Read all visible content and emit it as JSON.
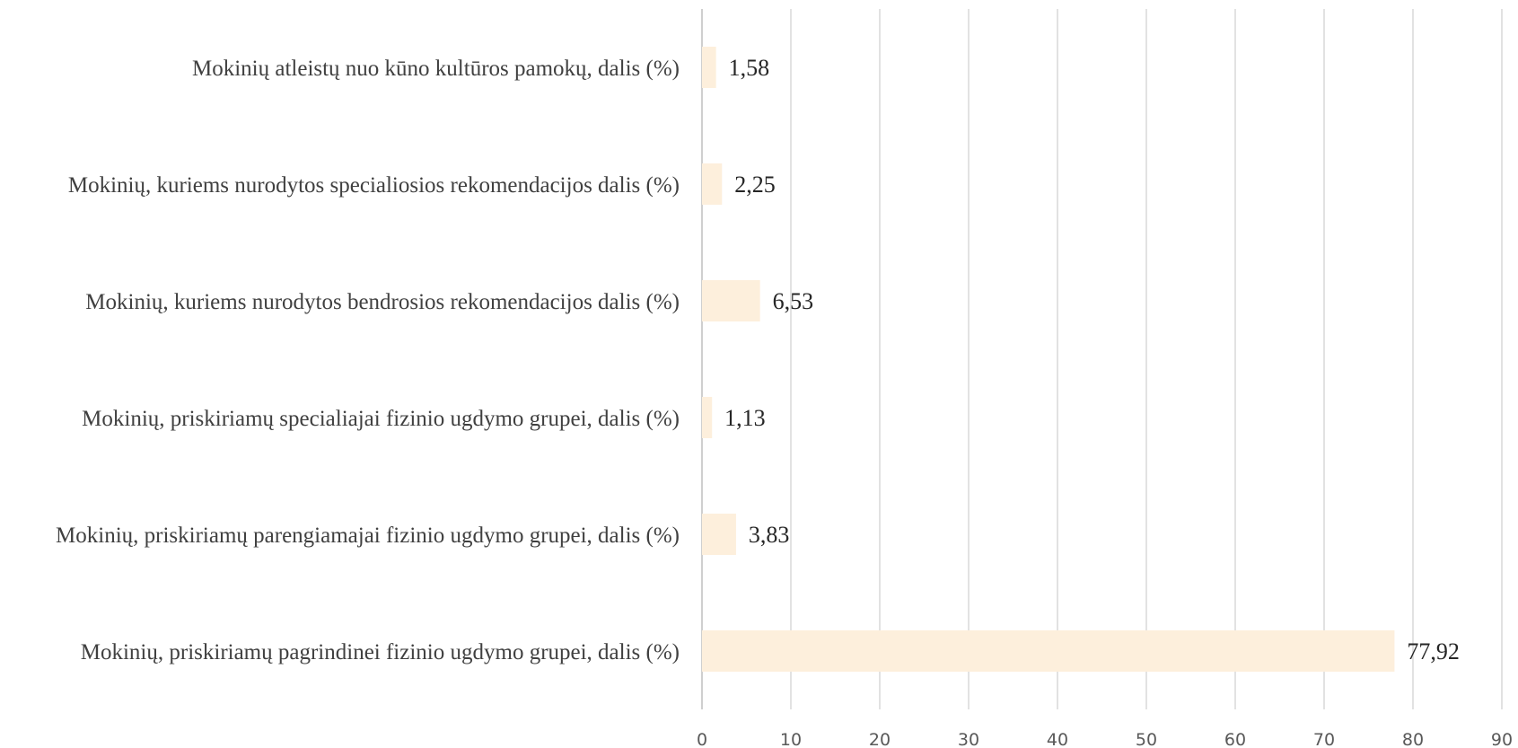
{
  "chart_data": {
    "type": "bar",
    "orientation": "horizontal",
    "categories": [
      "Mokinių atleistų nuo kūno kultūros pamokų, dalis (%)",
      "Mokinių, kuriems nurodytos specialiosios rekomendacijos dalis (%)",
      "Mokinių, kuriems nurodytos bendrosios rekomendacijos dalis (%)",
      "Mokinių, priskiriamų specialiajai fizinio ugdymo grupei, dalis (%)",
      "Mokinių, priskiriamų parengiamajai fizinio ugdymo grupei, dalis (%)",
      "Mokinių, priskiriamų pagrindinei fizinio ugdymo grupei, dalis (%)"
    ],
    "values": [
      1.58,
      2.25,
      6.53,
      1.13,
      3.83,
      77.92
    ],
    "value_labels": [
      "1,58",
      "2,25",
      "6,53",
      "1,13",
      "3,83",
      "77,92"
    ],
    "x_ticks": [
      "0",
      "10",
      "20",
      "30",
      "40",
      "50",
      "60",
      "70",
      "80",
      "90"
    ],
    "xlim": [
      0,
      90
    ],
    "grid": true,
    "legend": "none",
    "title": "",
    "xlabel": "",
    "ylabel": "",
    "colors": {
      "bar": "#fdefdc",
      "grid": "#d9d9d9",
      "axis": "#bfbfbf"
    }
  }
}
